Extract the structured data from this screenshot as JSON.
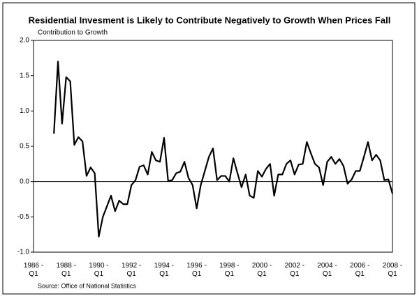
{
  "chart_data": {
    "type": "line",
    "title": "Residential Invesment is Likely to Contribute Negatively to Growth When Prices Fall",
    "subtitle": "Contribution to Growth",
    "source": "Source: Office of National Statistics",
    "categories": [
      "1986 - Q1",
      null,
      null,
      null,
      null,
      null,
      null,
      null,
      "1988 - Q1",
      null,
      null,
      null,
      null,
      null,
      null,
      null,
      "1990 - Q1",
      null,
      null,
      null,
      null,
      null,
      null,
      null,
      "1992 - Q1",
      null,
      null,
      null,
      null,
      null,
      null,
      null,
      "1994 - Q1",
      null,
      null,
      null,
      null,
      null,
      null,
      null,
      "1996 - Q1",
      null,
      null,
      null,
      null,
      null,
      null,
      null,
      "1998 - Q1",
      null,
      null,
      null,
      null,
      null,
      null,
      null,
      "2000 - Q1",
      null,
      null,
      null,
      null,
      null,
      null,
      null,
      "2002 - Q1",
      null,
      null,
      null,
      null,
      null,
      null,
      null,
      "2004 - Q1",
      null,
      null,
      null,
      null,
      null,
      null,
      null,
      "2006 - Q1",
      null,
      null,
      null,
      null,
      null,
      null,
      null,
      "2008 - Q1"
    ],
    "series": [
      {
        "color": "#000000",
        "values": [
          null,
          null,
          null,
          null,
          null,
          0.68,
          1.7,
          0.82,
          1.48,
          1.42,
          0.52,
          0.63,
          0.57,
          0.08,
          0.2,
          0.12,
          -0.78,
          -0.5,
          -0.35,
          -0.2,
          -0.42,
          -0.27,
          -0.32,
          -0.32,
          -0.05,
          0.02,
          0.21,
          0.23,
          0.1,
          0.42,
          0.3,
          0.28,
          0.62,
          0.01,
          0.02,
          0.12,
          0.14,
          0.28,
          0.05,
          -0.05,
          -0.38,
          -0.05,
          0.15,
          0.35,
          0.47,
          0.02,
          0.08,
          0.08,
          0.0,
          0.33,
          0.12,
          -0.08,
          0.1,
          -0.2,
          -0.23,
          0.15,
          0.07,
          0.18,
          0.25,
          -0.2,
          0.1,
          0.1,
          0.25,
          0.3,
          0.1,
          0.24,
          0.25,
          0.56,
          0.4,
          0.25,
          0.2,
          -0.05,
          0.28,
          0.35,
          0.25,
          0.32,
          0.22,
          -0.03,
          0.03,
          0.15,
          0.15,
          0.35,
          0.56,
          0.3,
          0.38,
          0.3,
          0.02,
          0.03,
          -0.17
        ]
      }
    ],
    "ylim": [
      -1.0,
      2.0
    ],
    "yticks": [
      {
        "value": -1.0,
        "label": "-1.0"
      },
      {
        "value": -0.5,
        "label": "-0.5"
      },
      {
        "value": 0.0,
        "label": "0.0"
      },
      {
        "value": 0.5,
        "label": "0.5"
      },
      {
        "value": 1.0,
        "label": "1.0"
      },
      {
        "value": 1.5,
        "label": "1.5"
      },
      {
        "value": 2.0,
        "label": "2.0"
      }
    ],
    "grid": false
  }
}
